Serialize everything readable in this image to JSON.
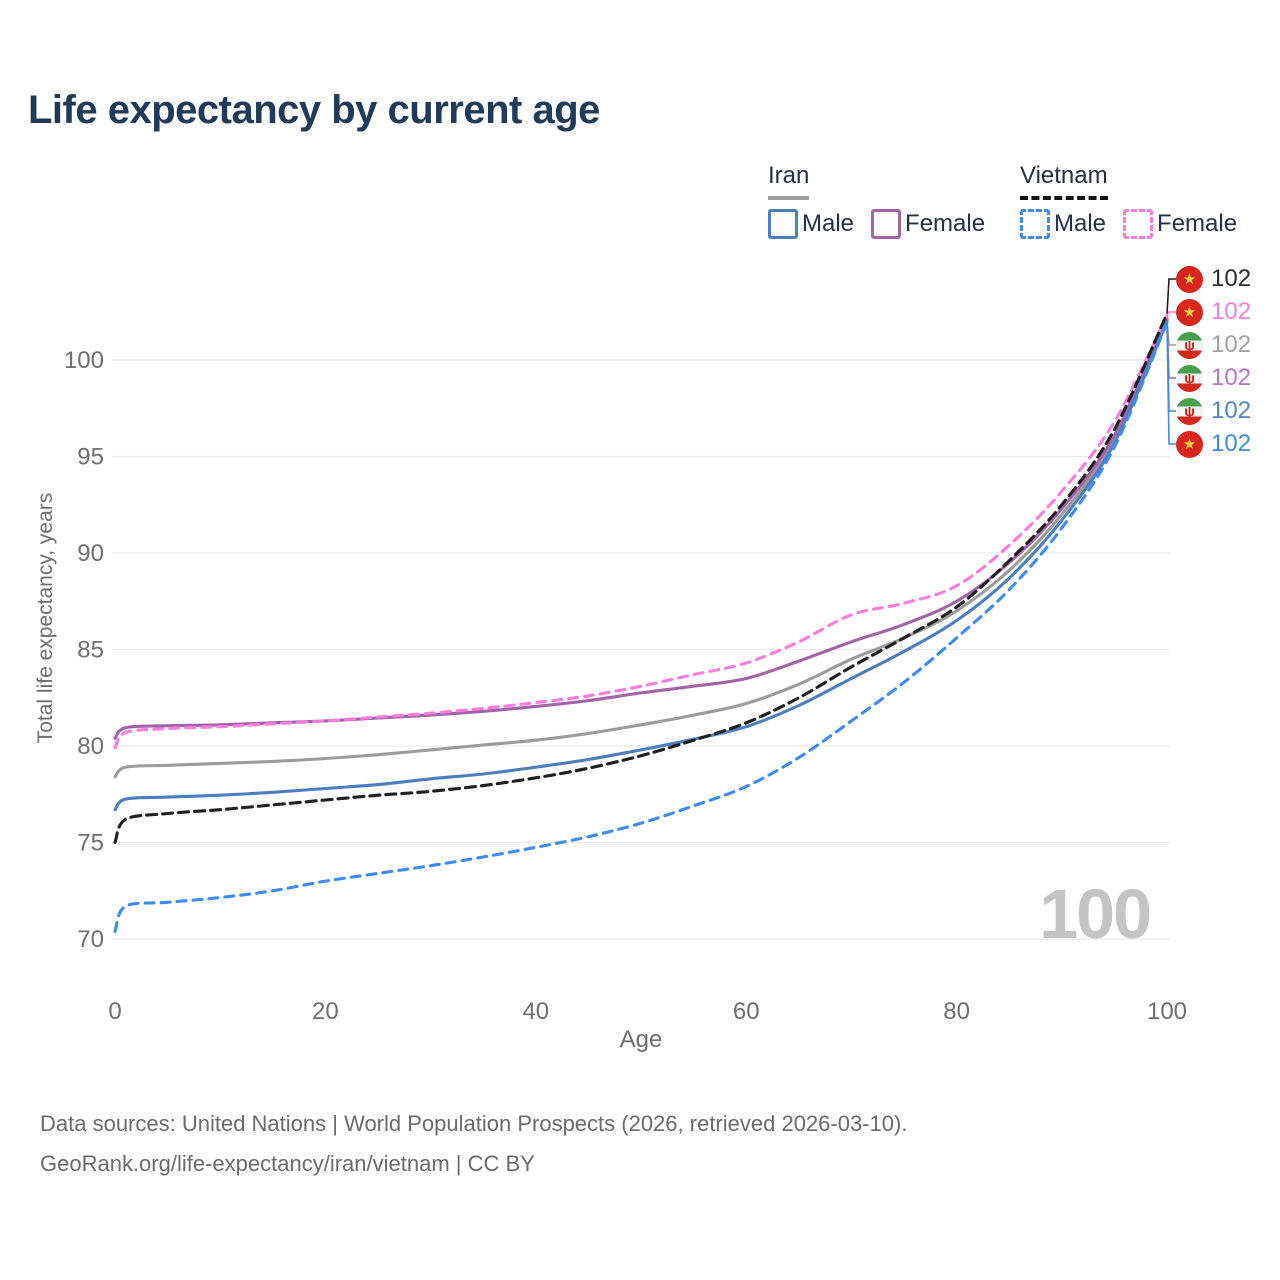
{
  "header": {
    "title": "Life expectancy by current age"
  },
  "legend": {
    "groups": [
      {
        "name": "Iran",
        "line_style": "solid",
        "underline_color": "#9e9e9e",
        "items": [
          {
            "label": "Male",
            "color": "#4d7ebf",
            "dashed": false
          },
          {
            "label": "Female",
            "color": "#a263a8",
            "dashed": false
          }
        ]
      },
      {
        "name": "Vietnam",
        "line_style": "dashed",
        "underline_color": "#151515",
        "items": [
          {
            "label": "Male",
            "color": "#3d8bf5",
            "dashed": true
          },
          {
            "label": "Female",
            "color": "#fa7ce1",
            "dashed": true
          }
        ]
      }
    ]
  },
  "chart_data": {
    "type": "line",
    "title": "Life expectancy by current age",
    "xlabel": "Age",
    "ylabel": "Total life expectancy, years",
    "watermark": "100",
    "x_ticks": [
      0,
      20,
      40,
      60,
      80,
      100
    ],
    "y_ticks": [
      70,
      75,
      80,
      85,
      90,
      95,
      100
    ],
    "xlim": [
      0,
      100
    ],
    "ylim": [
      69,
      103
    ],
    "grid": "horizontal-only",
    "legend_position": "top-right",
    "ages": [
      0,
      1,
      5,
      10,
      15,
      20,
      25,
      30,
      35,
      40,
      45,
      50,
      55,
      60,
      65,
      70,
      75,
      80,
      85,
      90,
      95,
      100
    ],
    "series": [
      {
        "key": "iran-total",
        "name": "Iran",
        "country": "Iran",
        "sex": "Both",
        "color": "#9c9c9c",
        "dashed": false,
        "flag": "iran",
        "label_color": "#a3a3a3",
        "row": 2,
        "end_label": "102",
        "values": [
          78.4,
          78.9,
          79.0,
          79.1,
          79.2,
          79.35,
          79.55,
          79.8,
          80.05,
          80.3,
          80.65,
          81.1,
          81.6,
          82.2,
          83.2,
          84.5,
          85.6,
          87.0,
          89.1,
          92.0,
          95.9,
          102.1
        ]
      },
      {
        "key": "iran-female",
        "name": "Iran Female",
        "country": "Iran",
        "sex": "Female",
        "color": "#a263a8",
        "dashed": false,
        "flag": "iran",
        "label_color": "#b678c2",
        "row": 3,
        "end_label": "102",
        "values": [
          80.4,
          80.95,
          81.05,
          81.1,
          81.2,
          81.3,
          81.45,
          81.6,
          81.8,
          82.05,
          82.35,
          82.75,
          83.1,
          83.5,
          84.4,
          85.4,
          86.3,
          87.5,
          89.5,
          92.3,
          96.1,
          102.15
        ]
      },
      {
        "key": "iran-male",
        "name": "Iran Male",
        "country": "Iran",
        "sex": "Male",
        "color": "#4d7ebf",
        "dashed": false,
        "flag": "iran",
        "label_color": "#5584ca",
        "row": 4,
        "end_label": "102",
        "values": [
          76.7,
          77.25,
          77.35,
          77.45,
          77.6,
          77.8,
          78.0,
          78.3,
          78.55,
          78.9,
          79.3,
          79.8,
          80.35,
          81.0,
          82.1,
          83.5,
          84.9,
          86.5,
          88.7,
          91.7,
          95.7,
          102.0
        ]
      },
      {
        "key": "vietnam-female",
        "name": "Vietnam Female",
        "country": "Vietnam",
        "sex": "Female",
        "color": "#fa7ce1",
        "dashed": true,
        "flag": "vietnam",
        "label_color": "#fa7ce1",
        "row": 1,
        "end_label": "102",
        "values": [
          79.9,
          80.7,
          80.9,
          81.0,
          81.15,
          81.3,
          81.5,
          81.7,
          81.95,
          82.25,
          82.6,
          83.1,
          83.7,
          84.3,
          85.4,
          86.8,
          87.4,
          88.3,
          90.4,
          93.2,
          96.8,
          102.3
        ]
      },
      {
        "key": "vietnam-total",
        "name": "Vietnam",
        "country": "Vietnam",
        "sex": "Both",
        "color": "#1f1f1f",
        "dashed": true,
        "flag": "vietnam",
        "label_color": "#2b2b2b",
        "row": 0,
        "end_label": "102",
        "values": [
          75.0,
          76.2,
          76.5,
          76.7,
          76.95,
          77.2,
          77.45,
          77.65,
          77.95,
          78.35,
          78.85,
          79.5,
          80.3,
          81.2,
          82.5,
          84.1,
          85.6,
          87.2,
          89.6,
          92.5,
          96.4,
          102.4
        ]
      },
      {
        "key": "vietnam-male",
        "name": "Vietnam Male",
        "country": "Vietnam",
        "sex": "Male",
        "color": "#3d8bf5",
        "dashed": true,
        "flag": "vietnam",
        "label_color": "#3d8bf5",
        "row": 5,
        "end_label": "102",
        "values": [
          70.4,
          71.7,
          71.9,
          72.15,
          72.5,
          73.0,
          73.4,
          73.8,
          74.25,
          74.75,
          75.3,
          76.0,
          76.9,
          77.9,
          79.4,
          81.3,
          83.3,
          85.6,
          88.1,
          91.3,
          95.5,
          101.95
        ]
      }
    ]
  },
  "footer": {
    "line1": "Data sources: United Nations | World Population Prospects (2026, retrieved 2026-03-10).",
    "line2": "GeoRank.org/life-expectancy/iran/vietnam | CC BY"
  }
}
